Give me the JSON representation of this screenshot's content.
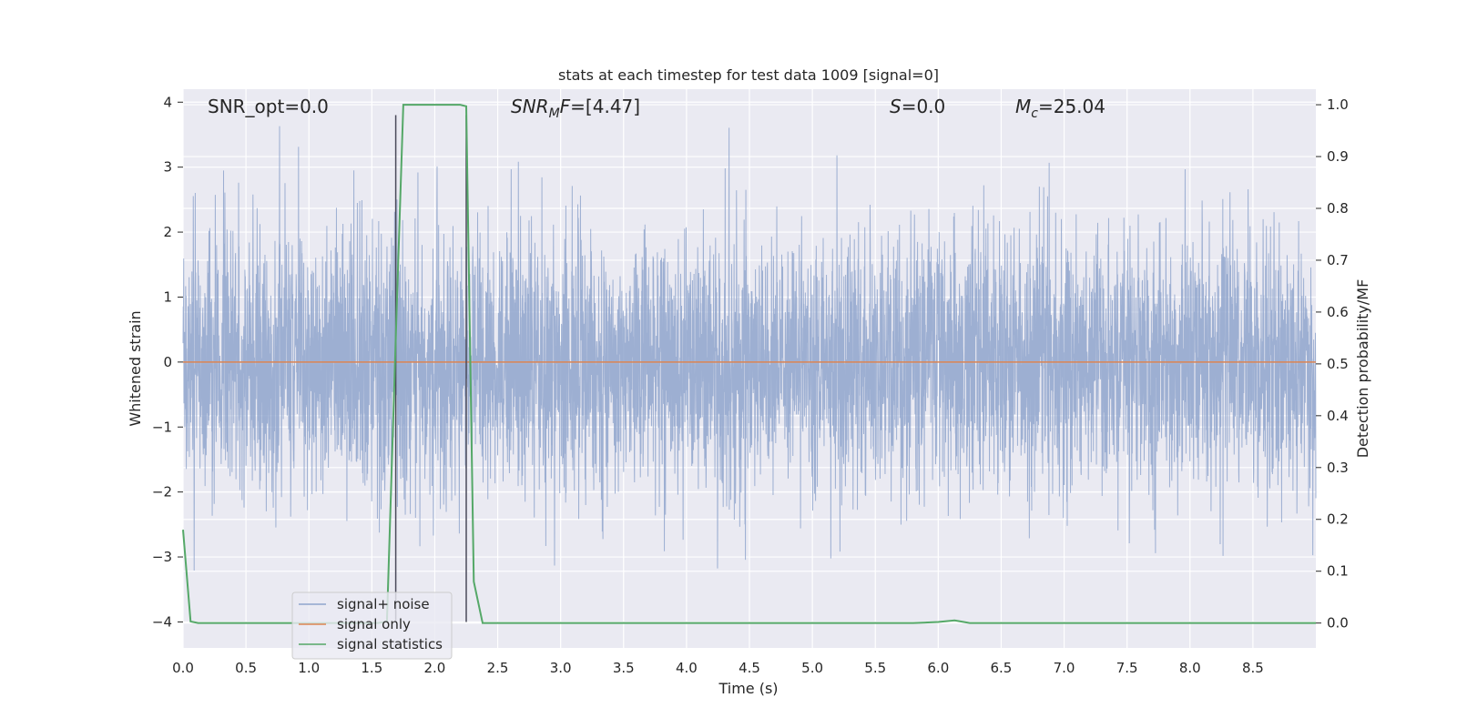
{
  "chart_data": {
    "type": "line",
    "title": "stats at each timestep for test data 1009 [signal=0]",
    "xlabel": "Time (s)",
    "ylabel_left": "Whitened strain",
    "ylabel_right": "Detection probability/MF",
    "xlim": [
      0.0,
      9.0
    ],
    "ylim_left": [
      -4.4,
      4.2
    ],
    "ylim_right": [
      -0.048,
      1.03
    ],
    "xticks": [
      "0.0",
      "0.5",
      "1.0",
      "1.5",
      "2.0",
      "2.5",
      "3.0",
      "3.5",
      "4.0",
      "4.5",
      "5.0",
      "5.5",
      "6.0",
      "6.5",
      "7.0",
      "7.5",
      "8.0",
      "8.5"
    ],
    "yticks_left": [
      "4",
      "3",
      "2",
      "1",
      "0",
      "−1",
      "−2",
      "−3",
      "−4"
    ],
    "yticks_right": [
      "1.0",
      "0.9",
      "0.8",
      "0.7",
      "0.6",
      "0.5",
      "0.4",
      "0.3",
      "0.2",
      "0.1",
      "0.0"
    ],
    "grid": true,
    "legend_position": "lower-left",
    "annotations": {
      "snr_opt": "SNR_opt=0.0",
      "snr_mf_main": "SNR",
      "snr_mf_sub": "M",
      "snr_mf_tail": "F",
      "snr_mf_value": "=[4.47]",
      "s_symbol": "S",
      "s_value": "=0.0",
      "mc_symbol": "M",
      "mc_sub": "c",
      "mc_value": "=25.04"
    },
    "vertical_markers_x": [
      1.69,
      2.25
    ],
    "series": [
      {
        "name": "signal+ noise",
        "color": "#8fa4cc",
        "description_only": false,
        "axis": "left",
        "envelope_stats": {
          "sigma": 1.0,
          "peak_max": 3.8,
          "peak_min": -4.0
        }
      },
      {
        "name": "signal only",
        "color": "#dd8452",
        "axis": "left",
        "x": [
          0.0,
          9.0
        ],
        "y": [
          0.0,
          0.0
        ]
      },
      {
        "name": "signal statistics",
        "color": "#55a868",
        "axis": "right",
        "x": [
          0.0,
          0.06,
          0.12,
          0.5,
          1.0,
          1.55,
          1.62,
          1.69,
          1.75,
          2.0,
          2.2,
          2.25,
          2.31,
          2.38,
          2.5,
          3.0,
          4.0,
          5.0,
          5.8,
          6.0,
          6.13,
          6.25,
          6.5,
          7.0,
          8.0,
          9.0
        ],
        "y": [
          0.18,
          0.003,
          0.0,
          0.0,
          0.0,
          0.0,
          0.003,
          0.55,
          1.0,
          1.0,
          1.0,
          0.997,
          0.08,
          0.0,
          0.0,
          0.0,
          0.0,
          0.0,
          0.0,
          0.002,
          0.005,
          0.0,
          0.0,
          0.0,
          0.0,
          0.0
        ]
      }
    ]
  }
}
